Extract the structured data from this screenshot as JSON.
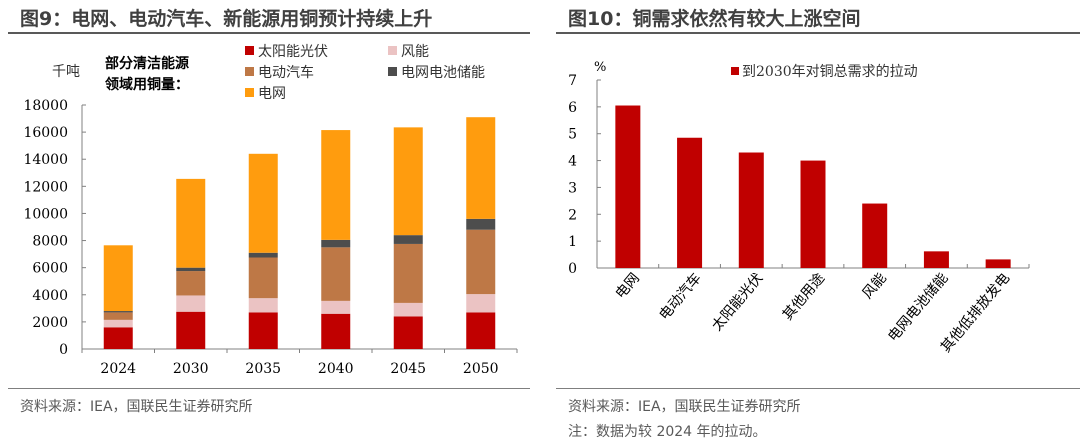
{
  "left": {
    "title": "图9：电网、电动汽车、新能源用铜预计持续上升",
    "source": "资料来源：IEA，国联民生证券研究所"
  },
  "right": {
    "title": "图10：铜需求依然有较大上涨空间",
    "source": "资料来源：IEA，国联民生证券研究所",
    "note": "注：数据为较 2024 年的拉动。"
  },
  "chart_data": [
    {
      "type": "bar",
      "stacked": true,
      "ylabel": "千吨",
      "legend_title": "部分清洁能源领域用铜量：",
      "legend_position": "top",
      "categories": [
        "2024",
        "2030",
        "2035",
        "2040",
        "2045",
        "2050"
      ],
      "ylim": [
        0,
        18000
      ],
      "yticks": [
        0,
        2000,
        4000,
        6000,
        8000,
        10000,
        12000,
        14000,
        16000,
        18000
      ],
      "series": [
        {
          "name": "太阳能光伏",
          "color": "#c00000",
          "values": [
            1600,
            2750,
            2700,
            2600,
            2400,
            2700
          ]
        },
        {
          "name": "风能",
          "color": "#ebc3c3",
          "values": [
            550,
            1200,
            1050,
            950,
            1000,
            1350
          ]
        },
        {
          "name": "电动汽车",
          "color": "#be7846",
          "values": [
            550,
            1800,
            3000,
            3950,
            4350,
            4750
          ]
        },
        {
          "name": "电网电池储能",
          "color": "#4d4d4d",
          "values": [
            100,
            250,
            350,
            550,
            650,
            800
          ]
        },
        {
          "name": "电网",
          "color": "#ff9c0e",
          "values": [
            4850,
            6550,
            7300,
            8100,
            7950,
            7500
          ]
        }
      ]
    },
    {
      "type": "bar",
      "ylabel": "%",
      "legend_position": "top",
      "categories": [
        "电网",
        "电动汽车",
        "太阳能光伏",
        "其他用途",
        "风能",
        "电网电池储能",
        "其他低排放发电"
      ],
      "ylim": [
        0,
        7
      ],
      "yticks": [
        0,
        1,
        2,
        3,
        4,
        5,
        6,
        7
      ],
      "series": [
        {
          "name": "到2030年对铜总需求的拉动",
          "color": "#c00000",
          "values": [
            6.05,
            4.85,
            4.3,
            4.0,
            2.4,
            0.62,
            0.32
          ]
        }
      ]
    }
  ]
}
